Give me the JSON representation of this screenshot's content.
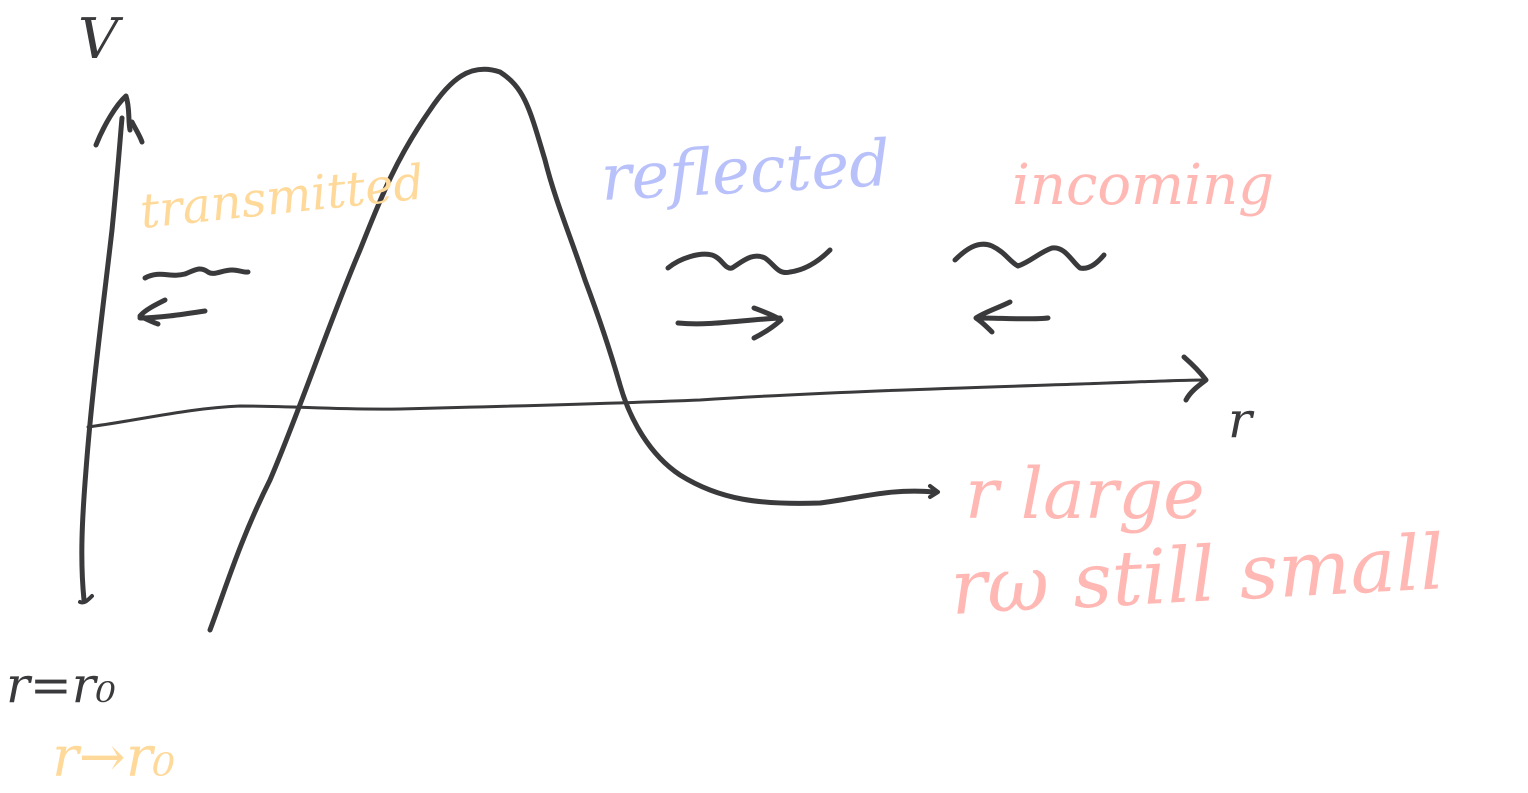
{
  "labels": {
    "v_axis": "V",
    "r_axis": "r",
    "transmitted": "transmitted",
    "reflected": "reflected",
    "incoming": "incoming",
    "r_large": "r large",
    "rw_small": "rω still small",
    "r_eq_r0": "r=r₀",
    "r_to_r0": "r→r₀"
  },
  "colors": {
    "ink": "#3a3a3c",
    "yellow": "#ffd99a",
    "blue": "#b9c1fb",
    "pink": "#ffb8b3"
  }
}
